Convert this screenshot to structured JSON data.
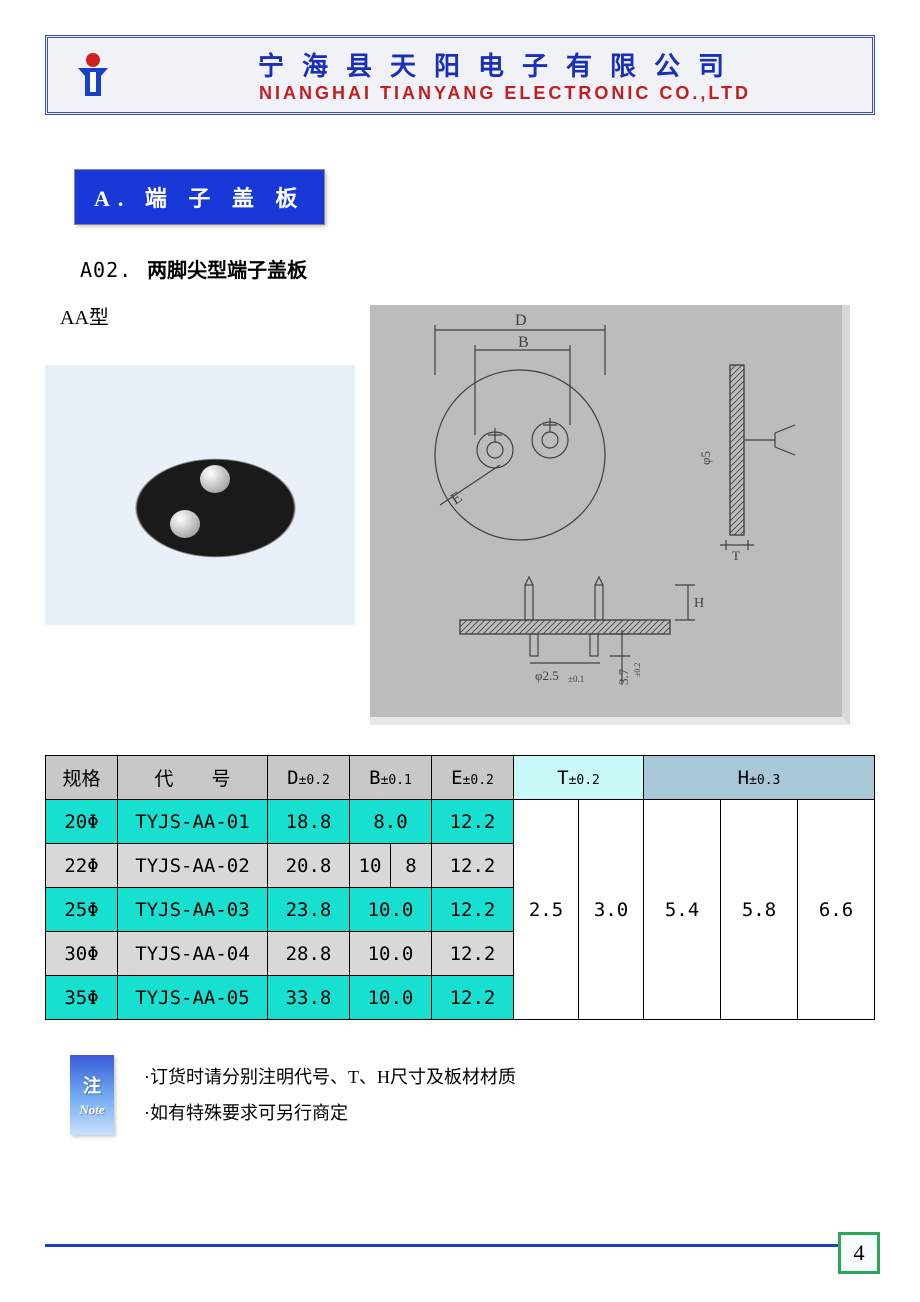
{
  "header": {
    "company_cn": "宁海县天阳电子有限公司",
    "company_en": "NIANGHAI TIANYANG ELECTRONIC CO.,LTD",
    "cn_color": "#1a2fb8",
    "en_color": "#c02020",
    "banner_bg": "#f0f2f8",
    "banner_border": "#3b4fb8"
  },
  "section": {
    "badge": "A. 端 子 盖 板",
    "badge_bg": "#1838d8",
    "badge_text_color": "#ffffff",
    "sub_code": "A02.",
    "sub_title": "两脚尖型端子盖板",
    "type_label": "AA型"
  },
  "diagram": {
    "bg": "#bcbcbc",
    "stroke": "#404040",
    "dim_labels": {
      "D": "D",
      "B": "B",
      "E": "E",
      "H": "H",
      "T": "T",
      "phi5": "φ5",
      "phi25": "φ2.5",
      "tol01": "±0.1",
      "v37": "3.7",
      "tol02": "±0.2"
    }
  },
  "table": {
    "header_bg_left": "#c8c8c8",
    "header_bg_t": "#c8f8f8",
    "header_bg_h": "#a8c8d8",
    "row_cyan": "#18e0d0",
    "row_gray": "#d8d8d8",
    "columns": {
      "spec": "规格",
      "code": "代　　号",
      "D": "D",
      "D_tol": "±0.2",
      "B": "B",
      "B_tol": "±0.1",
      "E": "E",
      "E_tol": "±0.2",
      "T": "T",
      "T_tol": "±0.2",
      "H": "H",
      "H_tol": "±0.3"
    },
    "rows": [
      {
        "spec": "20Φ",
        "code": "TYJS-AA-01",
        "D": "18.8",
        "B": "8.0",
        "B2": "",
        "E": "12.2",
        "bg": "#18e0d0"
      },
      {
        "spec": "22Φ",
        "code": "TYJS-AA-02",
        "D": "20.8",
        "B": "10",
        "B2": "8",
        "E": "12.2",
        "bg": "#d8d8d8"
      },
      {
        "spec": "25Φ",
        "code": "TYJS-AA-03",
        "D": "23.8",
        "B": "10.0",
        "B2": "",
        "E": "12.2",
        "bg": "#18e0d0"
      },
      {
        "spec": "30Φ",
        "code": "TYJS-AA-04",
        "D": "28.8",
        "B": "10.0",
        "B2": "",
        "E": "12.2",
        "bg": "#d8d8d8"
      },
      {
        "spec": "35Φ",
        "code": "TYJS-AA-05",
        "D": "33.8",
        "B": "10.0",
        "B2": "",
        "E": "12.2",
        "bg": "#18e0d0"
      }
    ],
    "T_values": [
      "2.5",
      "3.0"
    ],
    "H_values": [
      "5.4",
      "5.8",
      "6.6"
    ]
  },
  "notes": {
    "tab_cn": "注",
    "tab_en": "Note",
    "bullet": "·",
    "line1": "订货时请分别注明代号、T、H尺寸及板材材质",
    "line2": "如有特殊要求可另行商定"
  },
  "footer": {
    "line_color": "#1a3fc8",
    "page_number": "4",
    "page_border": "#2aa858"
  }
}
